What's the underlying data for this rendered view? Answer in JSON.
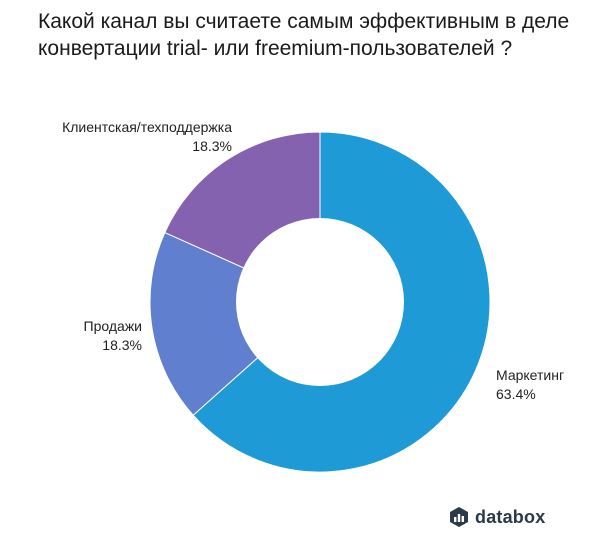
{
  "title_lines": [
    "Какой канал вы считаете самым эффективным в деле",
    "конвертации trial- или  freemium-пользователей ?"
  ],
  "chart_data": {
    "type": "pie",
    "title": "Какой канал вы считаете самым эффективным в деле конвертации trial- или  freemium-пользователей ?",
    "donut": true,
    "slices": [
      {
        "label": "Маркетинг",
        "value": 63.4,
        "value_label": "63.4%",
        "color": "#1e9ad6"
      },
      {
        "label": "Продажи",
        "value": 18.3,
        "value_label": "18.3%",
        "color": "#607fce"
      },
      {
        "label": "Клиентская/техподдержка",
        "value": 18.3,
        "value_label": "18.3%",
        "color": "#8462b0"
      }
    ]
  },
  "brand": {
    "name": "databox",
    "icon": "databox-logo-icon",
    "color": "#2b3a4a"
  }
}
